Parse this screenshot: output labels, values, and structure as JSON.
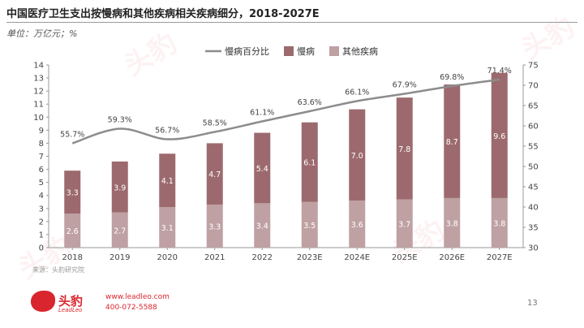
{
  "page": {
    "title": "中国医疗卫生支出按慢病和其他疾病相关疾病细分，2018-2027E",
    "unit": "单位：万亿元；%",
    "source": "来源：头豹研究院",
    "page_number": "13",
    "contact_web": "www.leadleo.com",
    "contact_phone": "400-072-5588",
    "logo_text": "头豹",
    "logo_sub": "LeadLeo",
    "watermark": "头豹"
  },
  "colors": {
    "chronic": "#9c6a6e",
    "other": "#bfa1a3",
    "line": "#8c8c8c",
    "brand": "#d9262e"
  },
  "chart_data": {
    "type": "bar",
    "stacked": true,
    "title": "",
    "categories": [
      "2018",
      "2019",
      "2020",
      "2021",
      "2022",
      "2023E",
      "2024E",
      "2025E",
      "2026E",
      "2027E"
    ],
    "series": [
      {
        "name": "其他疾病",
        "type": "bar",
        "axis": "left",
        "values": [
          2.6,
          2.7,
          3.1,
          3.3,
          3.4,
          3.5,
          3.6,
          3.7,
          3.8,
          3.8
        ]
      },
      {
        "name": "慢病",
        "type": "bar",
        "axis": "left",
        "values": [
          3.3,
          3.9,
          4.1,
          4.7,
          5.4,
          6.1,
          7.0,
          7.8,
          8.7,
          9.6
        ]
      },
      {
        "name": "慢病百分比",
        "type": "line",
        "axis": "right",
        "values": [
          55.7,
          59.3,
          56.7,
          58.5,
          61.1,
          63.6,
          66.1,
          67.9,
          69.8,
          71.4
        ],
        "labels": [
          "55.7%",
          "59.3%",
          "56.7%",
          "58.5%",
          "61.1%",
          "63.6%",
          "66.1%",
          "67.9%",
          "69.8%",
          "71.4%"
        ]
      }
    ],
    "legend_order": [
      "慢病百分比",
      "慢病",
      "其他疾病"
    ],
    "legend_position": "top-center",
    "y_left": {
      "min": 0,
      "max": 14,
      "ticks": [
        0,
        1,
        2,
        3,
        4,
        5,
        6,
        7,
        8,
        9,
        10,
        11,
        12,
        13,
        14
      ]
    },
    "y_right": {
      "min": 30,
      "max": 75,
      "ticks": [
        30,
        35,
        40,
        45,
        50,
        55,
        60,
        65,
        70,
        75
      ]
    },
    "grid": false
  }
}
